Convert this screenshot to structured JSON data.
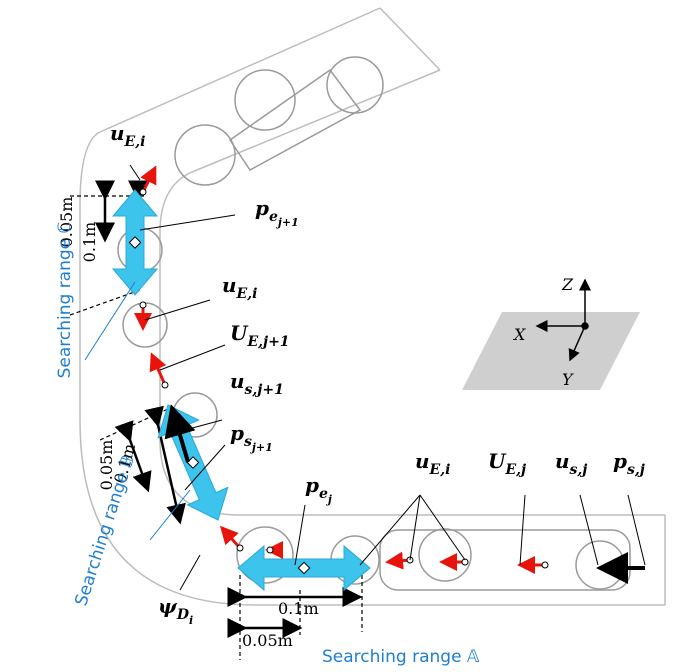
{
  "labels": [
    {
      "base": "u",
      "sub": "E,i"
    },
    {
      "base": "p",
      "sub": "e",
      "sub2": "j+1"
    },
    {
      "base": "u",
      "sub": "E,i"
    },
    {
      "base": "U",
      "sub": "E,j+1"
    },
    {
      "base": "u",
      "sub": "s,j+1"
    },
    {
      "base": "p",
      "sub": "s",
      "sub2": "j+1"
    },
    {
      "base": "p",
      "sub": "e",
      "sub2": "j"
    },
    {
      "base": "u",
      "sub": "E,i"
    },
    {
      "base": "U",
      "sub": "E,j"
    },
    {
      "base": "u",
      "sub": "s,j"
    },
    {
      "base": "p",
      "sub": "s,j"
    },
    {
      "base": "ψ",
      "sub": "D",
      "sub2": "i"
    }
  ],
  "dimensions": [
    "0.05m",
    "0.1m",
    "0.05m",
    "0.1m",
    "0.1m",
    "0.05m"
  ],
  "ranges": [
    "Searching range ℂ",
    "Searching range 𝔹",
    "Searching range 𝔸"
  ],
  "axes": {
    "z": "Z",
    "x": "X",
    "y": "Y"
  }
}
